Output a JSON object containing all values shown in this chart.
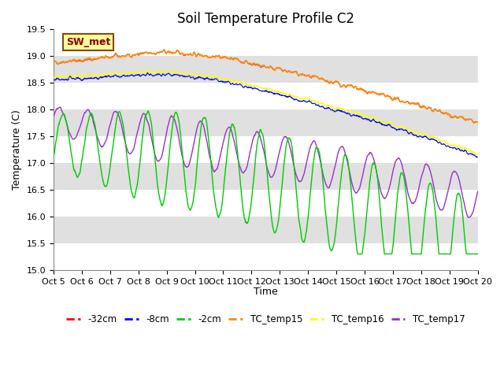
{
  "title": "Soil Temperature Profile C2",
  "xlabel": "Time",
  "ylabel": "Temperature (C)",
  "ylim": [
    15.0,
    19.5
  ],
  "xlim": [
    0,
    15
  ],
  "x_tick_labels": [
    "Oct 5",
    "Oct 6",
    "Oct 7",
    "Oct 8",
    "Oct 9",
    "Oct 10",
    "Oct 11",
    "Oct 12",
    "Oct 13",
    "Oct 14",
    "Oct 15",
    "Oct 16",
    "Oct 17",
    "Oct 18",
    "Oct 19",
    "Oct 20"
  ],
  "background_color": "#ffffff",
  "plot_bg_color": "#e8e8e8",
  "grid_color": "#ffffff",
  "alt_band_color": "#d8d8d8",
  "legend_label": "SW_met",
  "legend_box_color": "#ffff99",
  "legend_box_edge": "#8B4513",
  "series_colors": {
    "neg32cm": "#ff0000",
    "neg8cm": "#0000ff",
    "neg2cm": "#00cc00",
    "TC_temp15": "#ff8c00",
    "TC_temp16": "#ffff00",
    "TC_temp17": "#9932CC"
  },
  "series_labels": [
    "-32cm",
    "-8cm",
    "-2cm",
    "TC_temp15",
    "TC_temp16",
    "TC_temp17"
  ],
  "title_fontsize": 12,
  "axis_fontsize": 9,
  "tick_fontsize": 8
}
